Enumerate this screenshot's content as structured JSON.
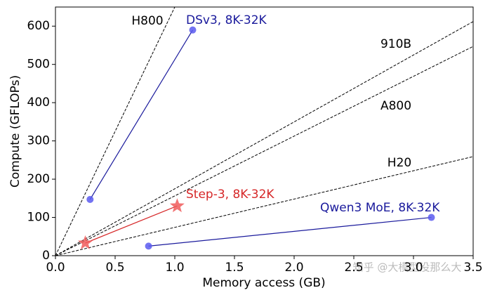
{
  "chart_data": {
    "type": "line",
    "xlabel": "Memory access (GB)",
    "ylabel": "Compute (GFLOPs)",
    "xlim": [
      0,
      3.5
    ],
    "ylim": [
      0,
      650
    ],
    "xticks": [
      {
        "value": 0,
        "label": "0.0"
      },
      0.5,
      {
        "value": 1,
        "label": "1.0"
      },
      1.5,
      {
        "value": 2,
        "label": "2.0"
      },
      2.5,
      {
        "value": 3,
        "label": "3.0"
      },
      3.5
    ],
    "yticks": [
      0,
      100,
      200,
      300,
      400,
      500,
      600
    ],
    "grid": false,
    "series": [
      {
        "name": "DSv3, 8K-32K",
        "color": "#1a1a9c",
        "marker_color": "#5a5af0",
        "marker": "circle",
        "x": [
          0.29,
          1.15
        ],
        "values": [
          147,
          590
        ]
      },
      {
        "name": "Step-3, 8K-32K",
        "color": "#d62728",
        "marker_color": "#f05a5a",
        "marker": "star",
        "x": [
          0.25,
          1.02
        ],
        "values": [
          33,
          130
        ]
      },
      {
        "name": "Qwen3 MoE, 8K-32K",
        "color": "#1a1a9c",
        "marker_color": "#5a5af0",
        "marker": "circle",
        "x": [
          0.78,
          3.15
        ],
        "values": [
          25,
          100
        ]
      }
    ],
    "reference_lines": [
      {
        "name": "H800",
        "x": [
          0,
          1.0
        ],
        "values": [
          0,
          650
        ]
      },
      {
        "name": "910B",
        "x": [
          0,
          3.5
        ],
        "values": [
          0,
          612
        ]
      },
      {
        "name": "A800",
        "x": [
          0,
          3.5
        ],
        "values": [
          0,
          547
        ]
      },
      {
        "name": "H20",
        "x": [
          0,
          3.5
        ],
        "values": [
          0,
          259
        ]
      }
    ],
    "watermark": "知乎 @大模型没那么大"
  }
}
